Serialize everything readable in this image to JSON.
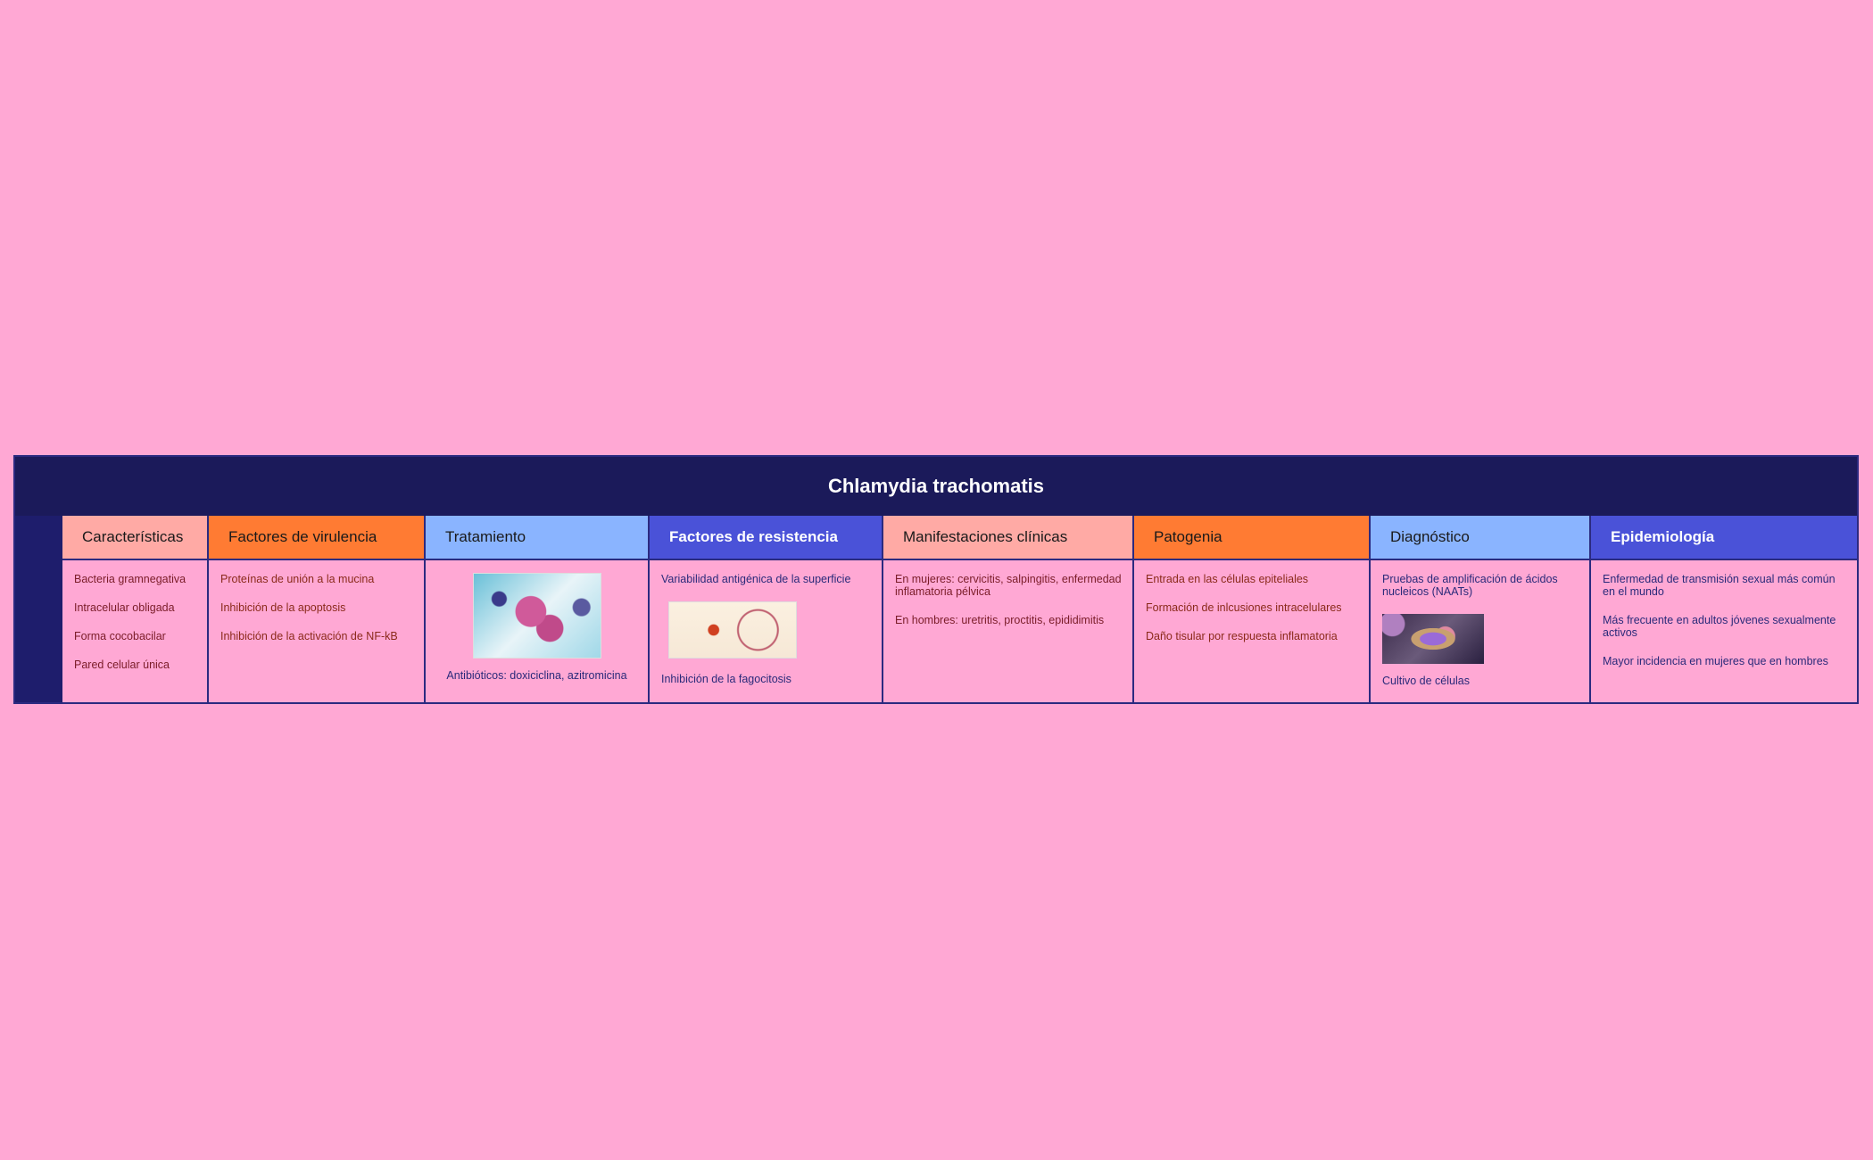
{
  "title": "Chlamydia trachomatis",
  "columns": [
    {
      "header": "Características",
      "header_bg": "#ffaaa5",
      "header_color": "#1a1a1a",
      "text_color": "#7a1c28",
      "items": [
        "Bacteria gramnegativa",
        "Intracelular obligada",
        "Forma cocobacilar",
        "Pared celular única"
      ]
    },
    {
      "header": "Factores de virulencia",
      "header_bg": "#ff7b33",
      "header_color": "#1a1a1a",
      "text_color": "#8a2a1a",
      "items": [
        "Proteínas de unión a la mucina",
        "Inhibición de la apoptosis",
        "Inhibición de la activación de NF-kB"
      ]
    },
    {
      "header": "Tratamiento",
      "header_bg": "#8ab4ff",
      "header_color": "#1a1a1a",
      "text_color": "#2a2a7a",
      "image": "micrograph-image",
      "items": [
        "Antibióticos: doxiciclina, azitromicina"
      ]
    },
    {
      "header": "Factores de resistencia",
      "header_bg": "#4a52d8",
      "header_color": "#ffffff",
      "text_color": "#2a2a7a",
      "items": [
        "Variabilidad antigénica de la superficie",
        "Inhibición de la fagocitosis"
      ],
      "image": "diagram-image"
    },
    {
      "header": "Manifestaciones clínicas",
      "header_bg": "#ffaaa5",
      "header_color": "#1a1a1a",
      "text_color": "#7a1c28",
      "items": [
        "En mujeres: cervicitis, salpingitis, enfermedad inflamatoria pélvica",
        "En hombres: uretritis, proctitis, epididimitis"
      ]
    },
    {
      "header": "Patogenia",
      "header_bg": "#ff7b33",
      "header_color": "#1a1a1a",
      "text_color": "#8a2a1a",
      "items": [
        "Entrada en las células epiteliales",
        "Formación de inlcusiones intracelulares",
        "Daño tisular por respuesta inflamatoria"
      ]
    },
    {
      "header": "Diagnóstico",
      "header_bg": "#8ab4ff",
      "header_color": "#1a1a1a",
      "text_color": "#2a2a7a",
      "items": [
        "Pruebas de amplificación de ácidos nucleicos (NAATs)",
        "Cultivo de células"
      ],
      "image": "cell-culture-image"
    },
    {
      "header": "Epidemiología",
      "header_bg": "#4a52d8",
      "header_color": "#ffffff",
      "text_color": "#2a2a7a",
      "items": [
        "Enfermedad de transmisión sexual más común en el mundo",
        "Más frecuente en adultos jóvenes sexualmente activos",
        "Mayor incidencia en mujeres que en hombres"
      ]
    }
  ]
}
